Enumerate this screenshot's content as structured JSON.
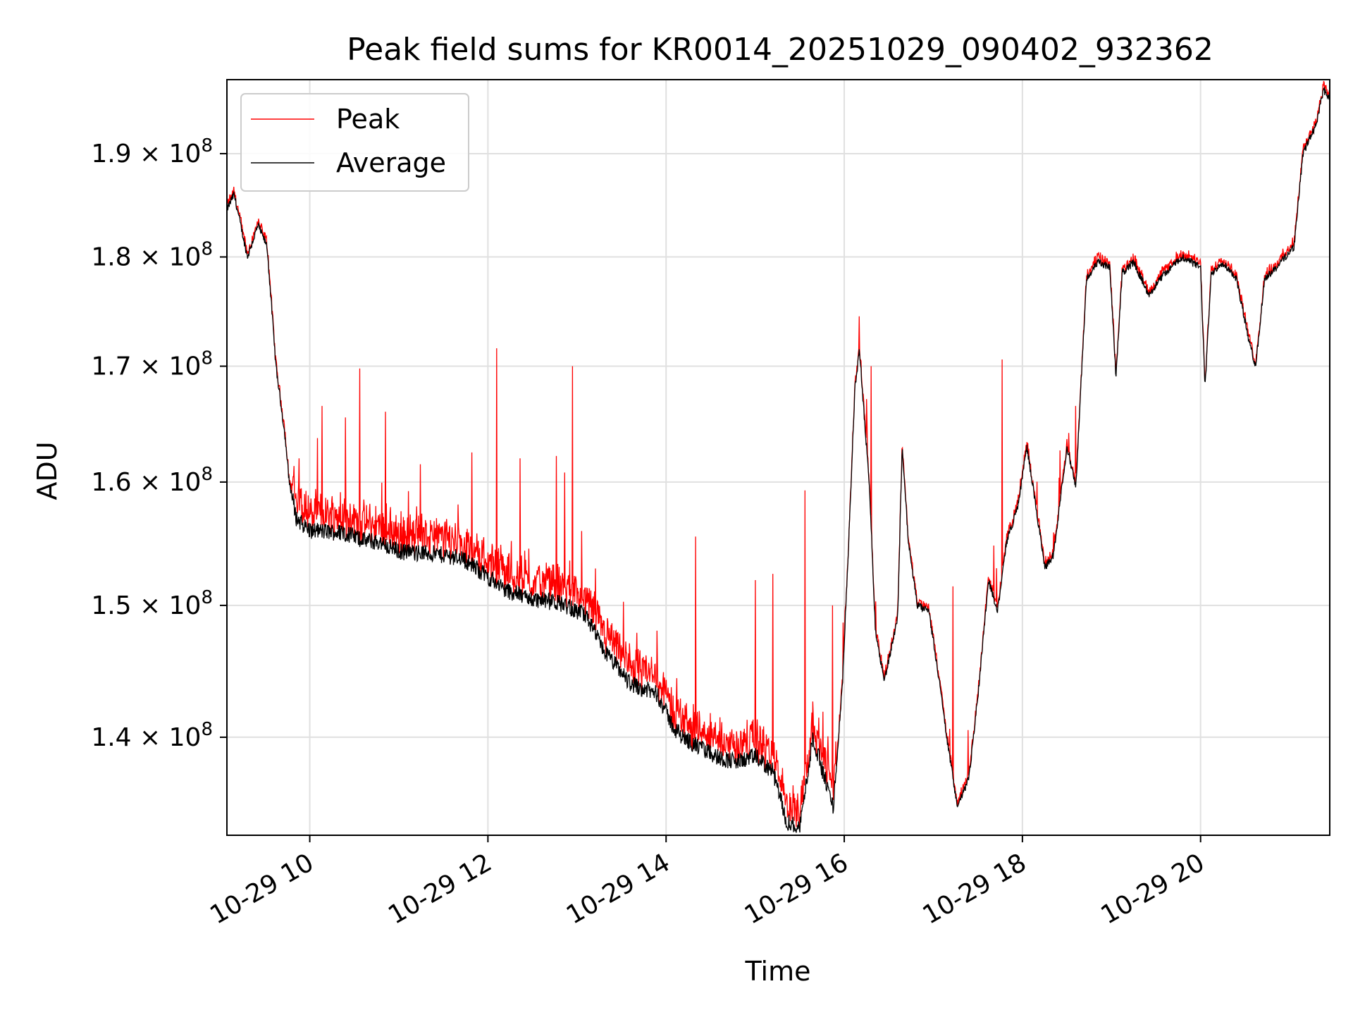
{
  "chart_data": {
    "type": "line",
    "title": "Peak field sums for KR0014_20251029_090402_932362",
    "xlabel": "Time",
    "ylabel": "ADU",
    "yscale": "log",
    "xlim": [
      9.07,
      21.45
    ],
    "ylim": [
      133000000,
      197500000
    ],
    "grid": true,
    "legend_position": "top-left",
    "x_ticks": [
      {
        "value": 10,
        "label": "10-29 10"
      },
      {
        "value": 12,
        "label": "10-29 12"
      },
      {
        "value": 14,
        "label": "10-29 14"
      },
      {
        "value": 16,
        "label": "10-29 16"
      },
      {
        "value": 18,
        "label": "10-29 18"
      },
      {
        "value": 20,
        "label": "10-29 20"
      }
    ],
    "y_ticks": [
      {
        "value": 140000000,
        "mantissa": "1.4",
        "times": "×",
        "base": "10",
        "exp": "8"
      },
      {
        "value": 150000000,
        "mantissa": "1.5",
        "times": "×",
        "base": "10",
        "exp": "8"
      },
      {
        "value": 160000000,
        "mantissa": "1.6",
        "times": "×",
        "base": "10",
        "exp": "8"
      },
      {
        "value": 170000000,
        "mantissa": "1.7",
        "times": "×",
        "base": "10",
        "exp": "8"
      },
      {
        "value": 180000000,
        "mantissa": "1.8",
        "times": "×",
        "base": "10",
        "exp": "8"
      },
      {
        "value": 190000000,
        "mantissa": "1.9",
        "times": "×",
        "base": "10",
        "exp": "8"
      }
    ],
    "series": [
      {
        "name": "Peak",
        "color": "#ff0000"
      },
      {
        "name": "Average",
        "color": "#000000"
      }
    ],
    "average_anchors": [
      [
        9.07,
        184500000
      ],
      [
        9.15,
        186000000
      ],
      [
        9.3,
        180000000
      ],
      [
        9.42,
        183000000
      ],
      [
        9.52,
        181000000
      ],
      [
        9.62,
        170000000
      ],
      [
        9.72,
        164000000
      ],
      [
        9.77,
        160000000
      ],
      [
        9.85,
        157000000
      ],
      [
        10.0,
        156000000
      ],
      [
        10.4,
        155800000
      ],
      [
        10.6,
        155200000
      ],
      [
        10.8,
        155000000
      ],
      [
        11.0,
        154300000
      ],
      [
        11.4,
        154100000
      ],
      [
        11.7,
        153800000
      ],
      [
        11.9,
        152800000
      ],
      [
        12.2,
        151200000
      ],
      [
        12.5,
        150500000
      ],
      [
        12.8,
        150200000
      ],
      [
        13.1,
        149200000
      ],
      [
        13.3,
        146500000
      ],
      [
        13.6,
        144000000
      ],
      [
        13.9,
        143200000
      ],
      [
        14.1,
        140500000
      ],
      [
        14.3,
        139500000
      ],
      [
        14.6,
        138500000
      ],
      [
        14.8,
        138200000
      ],
      [
        15.0,
        138600000
      ],
      [
        15.2,
        137500000
      ],
      [
        15.35,
        134000000
      ],
      [
        15.5,
        133500000
      ],
      [
        15.65,
        140000000
      ],
      [
        15.78,
        137000000
      ],
      [
        15.88,
        135000000
      ],
      [
        15.98,
        144000000
      ],
      [
        16.05,
        155000000
      ],
      [
        16.12,
        168000000
      ],
      [
        16.17,
        171500000
      ],
      [
        16.23,
        165000000
      ],
      [
        16.28,
        160000000
      ],
      [
        16.35,
        148000000
      ],
      [
        16.45,
        144200000
      ],
      [
        16.6,
        149000000
      ],
      [
        16.65,
        163000000
      ],
      [
        16.72,
        155000000
      ],
      [
        16.82,
        150000000
      ],
      [
        16.95,
        149500000
      ],
      [
        17.05,
        145000000
      ],
      [
        17.15,
        140000000
      ],
      [
        17.27,
        135000000
      ],
      [
        17.4,
        137000000
      ],
      [
        17.5,
        143000000
      ],
      [
        17.62,
        152000000
      ],
      [
        17.72,
        149500000
      ],
      [
        17.82,
        155000000
      ],
      [
        17.95,
        158000000
      ],
      [
        18.05,
        163000000
      ],
      [
        18.15,
        158000000
      ],
      [
        18.25,
        153000000
      ],
      [
        18.35,
        154000000
      ],
      [
        18.5,
        163000000
      ],
      [
        18.6,
        159500000
      ],
      [
        18.72,
        178000000
      ],
      [
        18.85,
        179500000
      ],
      [
        18.98,
        179000000
      ],
      [
        19.05,
        169000000
      ],
      [
        19.12,
        178500000
      ],
      [
        19.25,
        179500000
      ],
      [
        19.42,
        176500000
      ],
      [
        19.6,
        178500000
      ],
      [
        19.8,
        180000000
      ],
      [
        20.0,
        179000000
      ],
      [
        20.05,
        168000000
      ],
      [
        20.12,
        178500000
      ],
      [
        20.25,
        179500000
      ],
      [
        20.4,
        178000000
      ],
      [
        20.55,
        172000000
      ],
      [
        20.62,
        170000000
      ],
      [
        20.72,
        178000000
      ],
      [
        20.85,
        179000000
      ],
      [
        21.05,
        181000000
      ],
      [
        21.15,
        190000000
      ],
      [
        21.3,
        193000000
      ],
      [
        21.38,
        196500000
      ],
      [
        21.45,
        195500000
      ]
    ],
    "peak_spikes": [
      [
        9.88,
        162000000
      ],
      [
        10.14,
        166500000
      ],
      [
        10.4,
        165500000
      ],
      [
        10.56,
        169800000
      ],
      [
        10.85,
        166000000
      ],
      [
        11.24,
        161500000
      ],
      [
        11.82,
        162500000
      ],
      [
        12.1,
        171600000
      ],
      [
        12.36,
        162000000
      ],
      [
        12.77,
        162200000
      ],
      [
        12.86,
        160800000
      ],
      [
        12.95,
        170000000
      ],
      [
        14.33,
        155500000
      ],
      [
        15.0,
        152000000
      ],
      [
        15.2,
        152500000
      ],
      [
        15.56,
        159300000
      ],
      [
        15.87,
        150000000
      ],
      [
        16.17,
        174500000
      ],
      [
        16.3,
        170000000
      ],
      [
        17.22,
        151500000
      ],
      [
        17.77,
        170600000
      ],
      [
        18.6,
        166500000
      ]
    ]
  }
}
